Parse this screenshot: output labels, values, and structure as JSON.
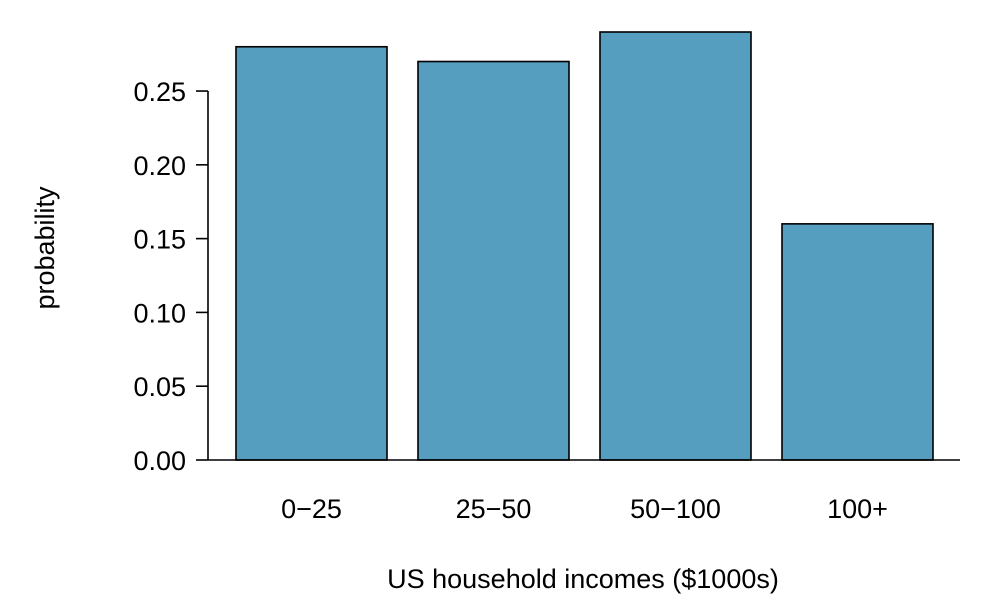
{
  "chart_data": {
    "type": "bar",
    "title": "",
    "xlabel": "US household incomes ($1000s)",
    "ylabel": "probability",
    "categories": [
      "0−25",
      "25−50",
      "50−100",
      "100+"
    ],
    "values": [
      0.28,
      0.27,
      0.29,
      0.16
    ],
    "ylim": [
      0,
      0.29
    ],
    "yticks": [
      0.0,
      0.05,
      0.1,
      0.15,
      0.2,
      0.25
    ],
    "ytick_labels": [
      "0.00",
      "0.05",
      "0.10",
      "0.15",
      "0.20",
      "0.25"
    ],
    "bar_color": "#569ec0",
    "grid": false
  }
}
